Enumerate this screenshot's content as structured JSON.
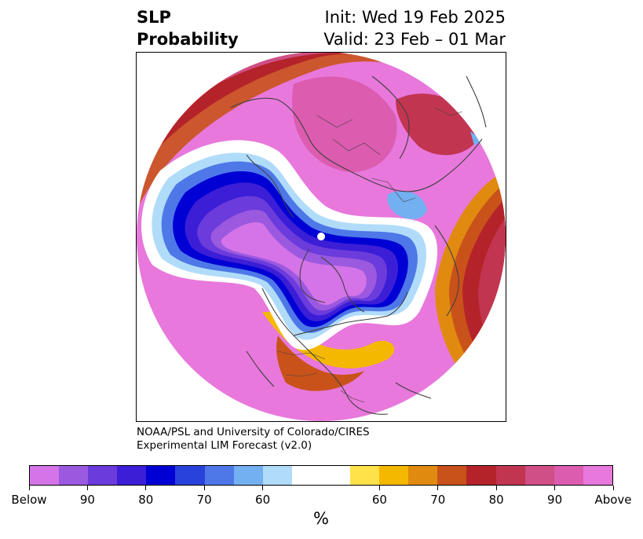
{
  "title": {
    "left_line1": "SLP",
    "left_line2": "Probability",
    "right_line1": "Init: Wed 19 Feb 2025",
    "right_line2": "Valid: 23 Feb – 01 Mar"
  },
  "credit": {
    "line1": "NOAA/PSL and University of Colorado/CIRES",
    "line2": "Experimental LIM Forecast (v2.0)"
  },
  "colorbar": {
    "unit": "%",
    "ticks": [
      "Below",
      "90",
      "80",
      "70",
      "60",
      "60",
      "70",
      "80",
      "90",
      "Above"
    ],
    "below_colors": [
      "#d574e8",
      "#9b59e0",
      "#6b3bdc",
      "#3b1ed6",
      "#0000d4",
      "#2a42dc",
      "#4e78e8",
      "#73b0f2",
      "#b0dcfa"
    ],
    "neutral_color": "#ffffff",
    "above_colors": [
      "#ffe24a",
      "#f5b800",
      "#e08a10",
      "#c9521a",
      "#b5232a",
      "#c23550",
      "#cf4f86",
      "#dc5cb0",
      "#e878dc"
    ]
  },
  "map": {
    "projection": "north-polar-stereographic",
    "outline_color": "#404040"
  }
}
